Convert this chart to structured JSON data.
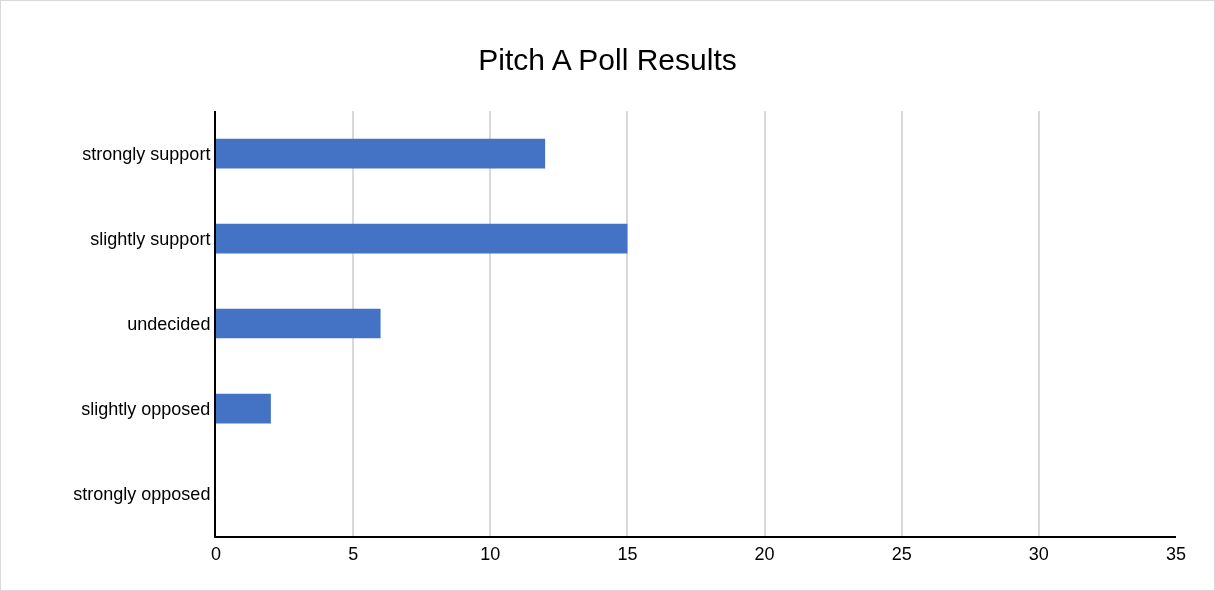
{
  "chart_data": {
    "type": "bar",
    "title": "Pitch A Poll Results",
    "orientation": "horizontal",
    "categories": [
      "strongly support",
      "slightly support",
      "undecided",
      "slightly opposed",
      "strongly opposed"
    ],
    "values": [
      12,
      15,
      6,
      2,
      0
    ],
    "color": "#4472c4",
    "xlim": [
      0,
      35
    ],
    "xticks": [
      0,
      5,
      10,
      15,
      20,
      25,
      30,
      35
    ],
    "grid": "x",
    "legend": false
  }
}
